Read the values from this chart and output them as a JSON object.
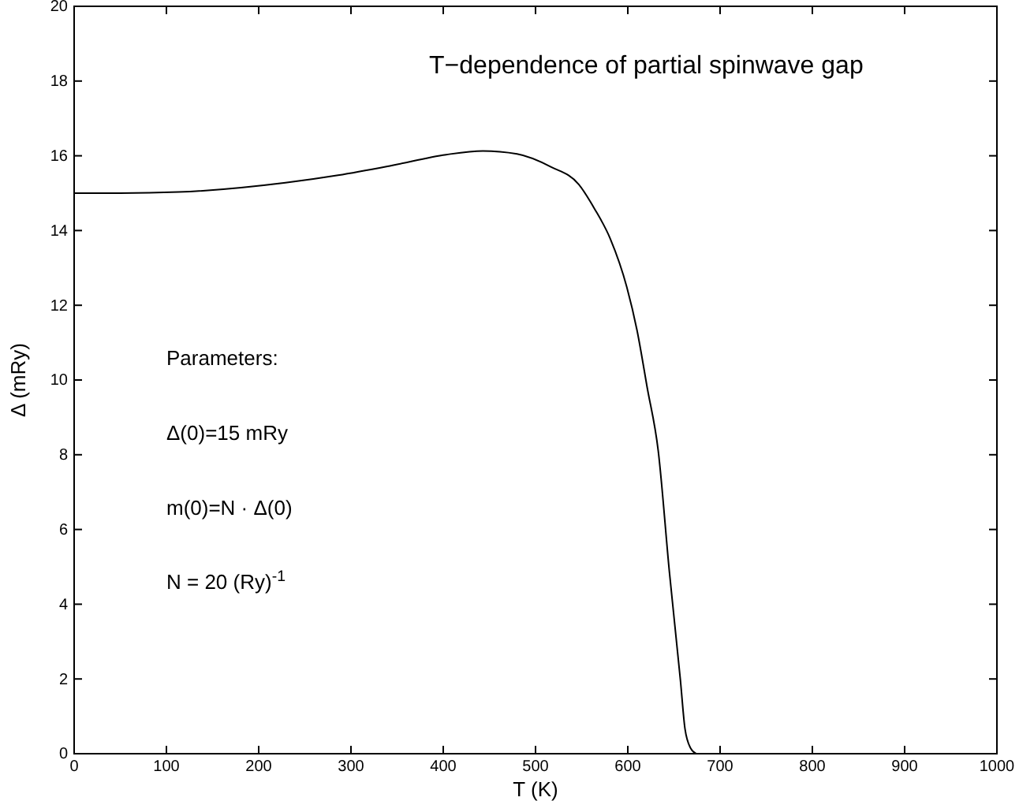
{
  "chart_data": {
    "type": "line",
    "xlabel": "T (K)",
    "ylabel": "Δ (mRy)",
    "xlim": [
      0,
      1000
    ],
    "xticks": [
      0,
      100,
      200,
      300,
      400,
      500,
      600,
      700,
      800,
      900,
      1000
    ],
    "ylim": [
      0,
      20
    ],
    "yticks": [
      0,
      2,
      4,
      6,
      8,
      10,
      12,
      14,
      16,
      18,
      20
    ],
    "grid": false,
    "annotations": [
      "T−dependence of partial spinwave gap",
      "Parameters:",
      "Δ(0)=15 mRy",
      "m(0)=N · Δ(0)",
      "N = 20 (Ry)$^{-1}$"
    ],
    "series": [
      {
        "color": "#000000",
        "x": [
          0,
          50,
          113,
          229,
          286,
          344,
          403,
          443,
          480,
          517,
          547,
          564,
          581,
          599,
          610,
          621,
          633,
          645,
          657,
          662,
          668,
          674
        ],
        "values": [
          15,
          15,
          15.03,
          15.28,
          15.48,
          15.74,
          16.03,
          16.13,
          16.05,
          15.7,
          15.23,
          14.58,
          13.78,
          12.48,
          11.33,
          9.8,
          8.1,
          4.88,
          1.97,
          0.66,
          0.15,
          0
        ]
      }
    ]
  }
}
